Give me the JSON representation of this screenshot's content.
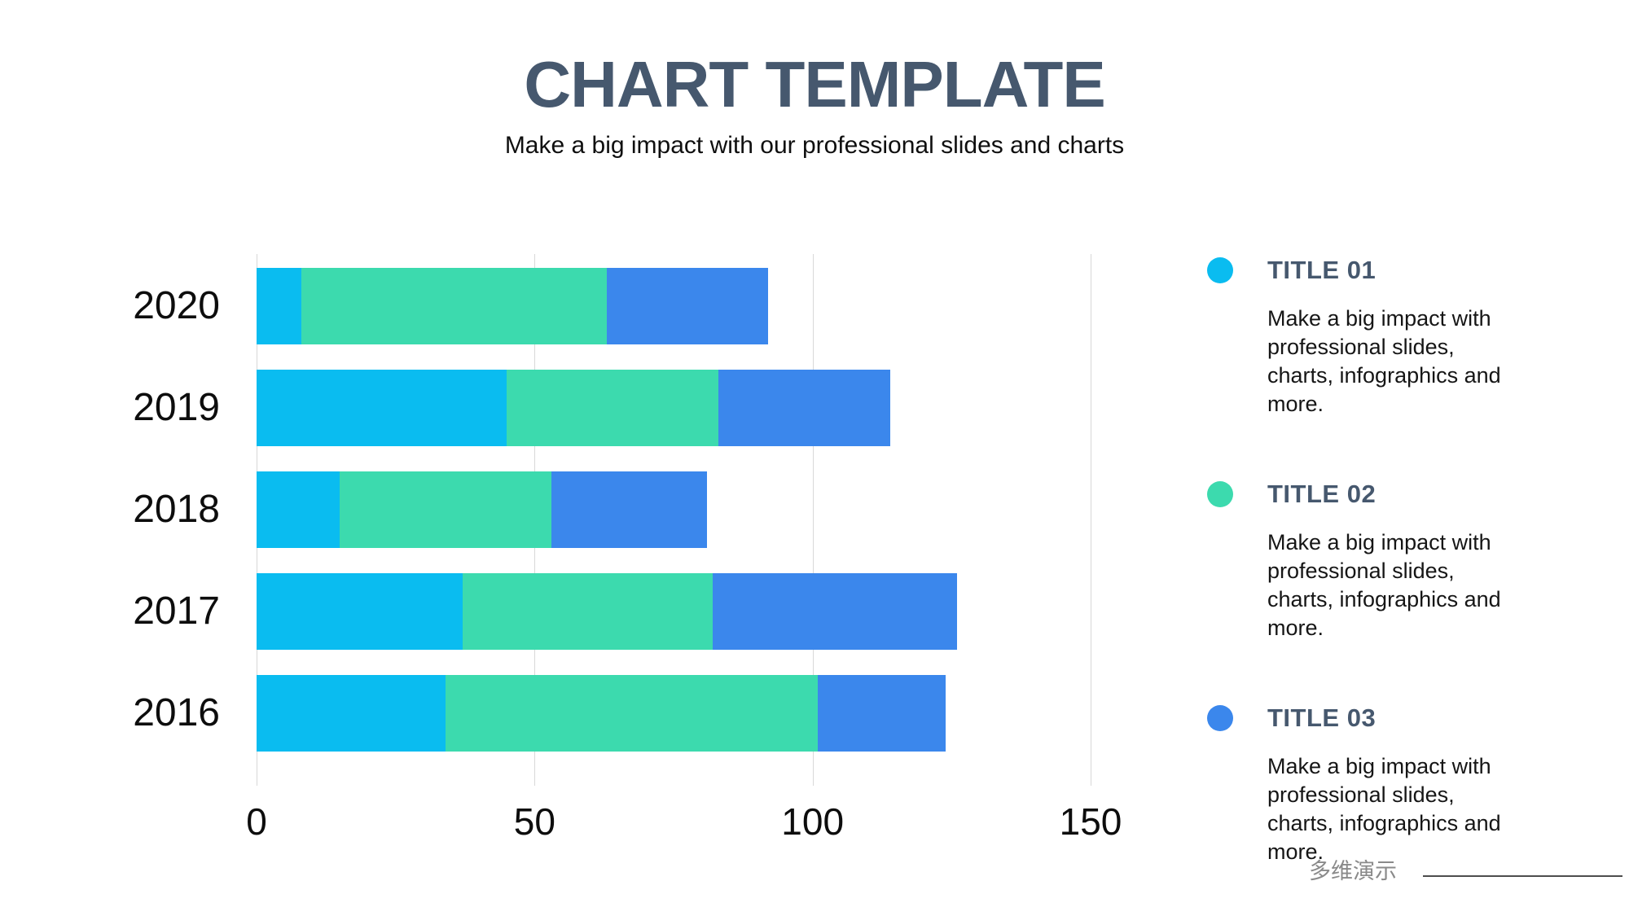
{
  "header": {
    "title": "CHART TEMPLATE",
    "subtitle": "Make a big impact with our professional slides and charts"
  },
  "chart_data": {
    "type": "bar",
    "orientation": "horizontal",
    "stacked": true,
    "title": "",
    "xlabel": "",
    "ylabel": "",
    "categories": [
      "2020",
      "2019",
      "2018",
      "2017",
      "2016"
    ],
    "series": [
      {
        "name": "TITLE 01",
        "color": "#0ABCF0",
        "values": [
          8,
          45,
          15,
          37,
          34
        ]
      },
      {
        "name": "TITLE 02",
        "color": "#3CDAAE",
        "values": [
          55,
          38,
          38,
          45,
          67
        ]
      },
      {
        "name": "TITLE 03",
        "color": "#3B87EC",
        "values": [
          29,
          31,
          28,
          44,
          23
        ]
      }
    ],
    "totals": [
      92,
      114,
      81,
      126,
      124
    ],
    "x_ticks": [
      "0",
      "50",
      "100",
      "150"
    ],
    "x_tick_values": [
      0,
      50,
      100,
      150
    ],
    "xlim": [
      0,
      168
    ],
    "grid": "vertical-only",
    "legend_position": "right"
  },
  "legend": {
    "items": [
      {
        "label": "TITLE 01",
        "color": "#0ABCF0",
        "description": "Make a big impact with professional slides, charts, infographics and more."
      },
      {
        "label": "TITLE 02",
        "color": "#3CDAAE",
        "description": "Make a big impact with professional slides, charts, infographics and more."
      },
      {
        "label": "TITLE 03",
        "color": "#3B87EC",
        "description": "Make a big impact with professional slides, charts, infographics and more."
      }
    ]
  },
  "watermark": {
    "text": "多维演示"
  },
  "colors": {
    "heading": "#46586E",
    "grid": "#D8D8D8",
    "body_text": "#161616",
    "watermark_text": "#8A8A8A"
  }
}
